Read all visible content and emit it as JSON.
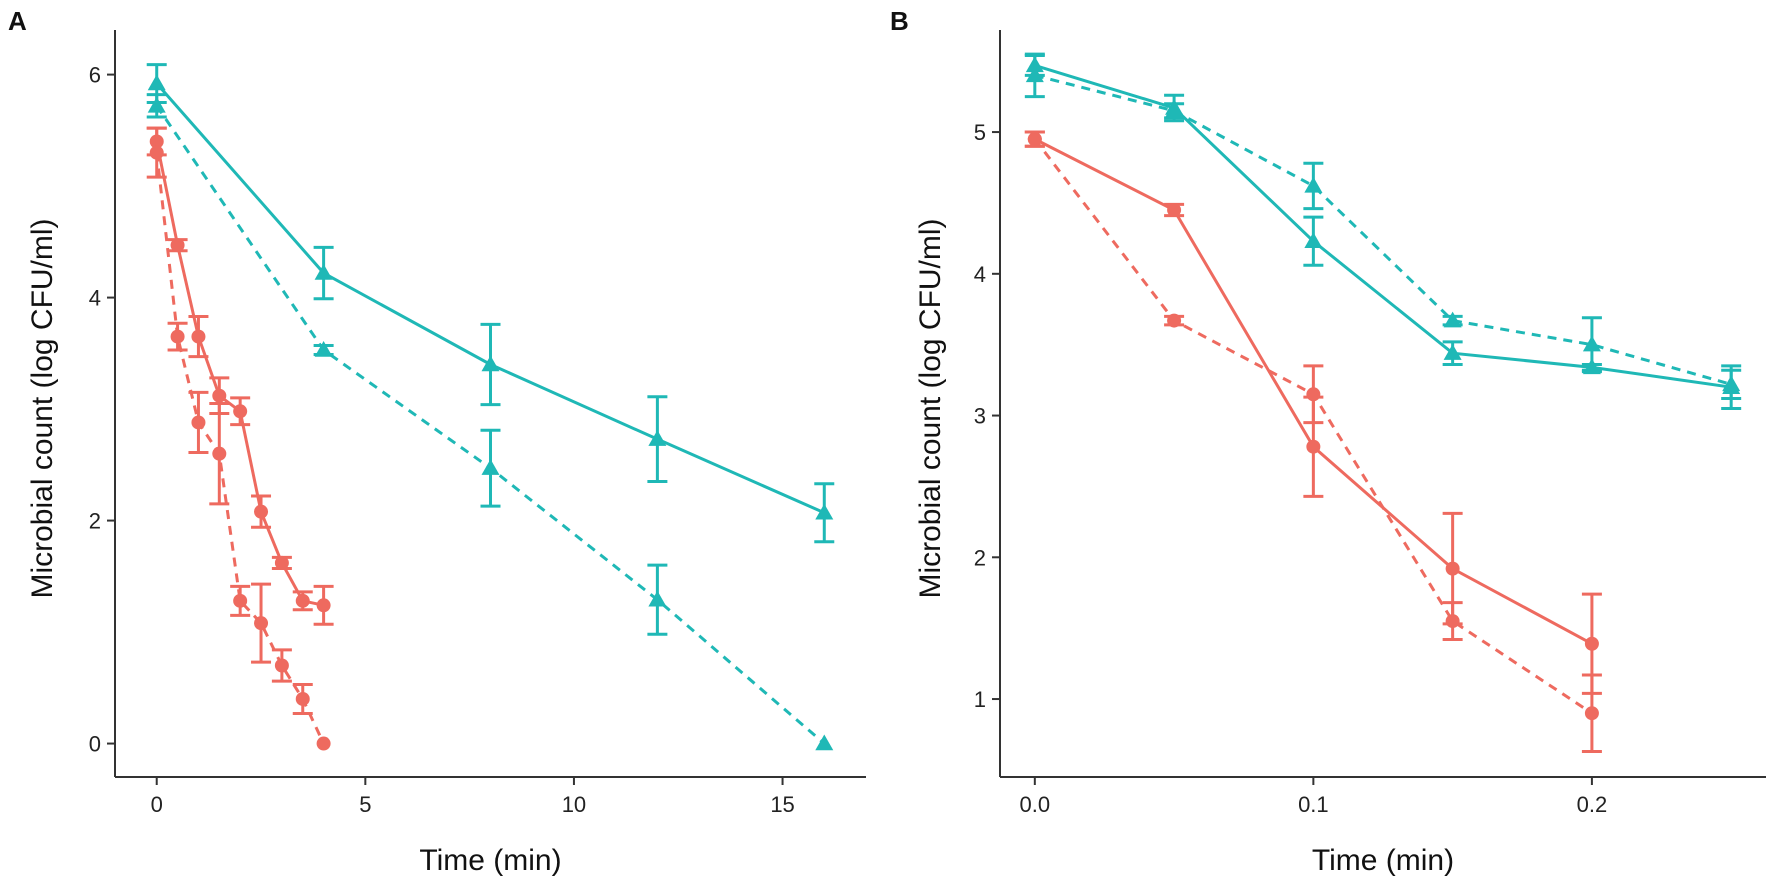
{
  "panels": {
    "a": "A",
    "b": "B"
  },
  "colors": {
    "red": "#EE6A5F",
    "teal": "#1FB8B6",
    "axis": "#333333"
  },
  "chart_data": [
    {
      "type": "line",
      "panel": "A",
      "xlabel": "Time (min)",
      "ylabel": "Microbial count (log CFU/ml)",
      "xlim": [
        -1,
        17
      ],
      "ylim": [
        -0.3,
        6.4
      ],
      "xticks": [
        0,
        5,
        10,
        15
      ],
      "xtick_labels": [
        "0",
        "5",
        "10",
        "15"
      ],
      "yticks": [
        0,
        2,
        4,
        6
      ],
      "ytick_labels": [
        "0",
        "2",
        "4",
        "6"
      ],
      "series": [
        {
          "name": "red-solid",
          "color": "red",
          "dash": false,
          "marker": "circle",
          "x": [
            0,
            0.5,
            1,
            1.5,
            2,
            2.5,
            3,
            3.5,
            4
          ],
          "y": [
            5.4,
            4.47,
            3.65,
            3.12,
            2.98,
            2.08,
            1.62,
            1.28,
            1.24
          ],
          "err": [
            0.12,
            0.05,
            0.18,
            0.16,
            0.12,
            0.14,
            0.05,
            0.08,
            0.17
          ]
        },
        {
          "name": "red-dashed",
          "color": "red",
          "dash": true,
          "marker": "circle",
          "x": [
            0,
            0.5,
            1,
            1.5,
            2,
            2.5,
            3,
            3.5,
            4
          ],
          "y": [
            5.3,
            3.65,
            2.88,
            2.6,
            1.28,
            1.08,
            0.7,
            0.4,
            0.0
          ],
          "err": [
            0.22,
            0.12,
            0.27,
            0.45,
            0.13,
            0.35,
            0.14,
            0.13,
            0.0
          ]
        },
        {
          "name": "teal-solid",
          "color": "teal",
          "dash": false,
          "marker": "triangle",
          "x": [
            0,
            4,
            8,
            12,
            16
          ],
          "y": [
            5.92,
            4.22,
            3.4,
            2.73,
            2.07
          ],
          "err": [
            0.17,
            0.23,
            0.36,
            0.38,
            0.26
          ]
        },
        {
          "name": "teal-dashed",
          "color": "teal",
          "dash": true,
          "marker": "triangle",
          "x": [
            0,
            4,
            8,
            12,
            16
          ],
          "y": [
            5.72,
            3.53,
            2.47,
            1.29,
            0.0
          ],
          "err": [
            0.1,
            0.04,
            0.34,
            0.31,
            0.0
          ]
        }
      ]
    },
    {
      "type": "line",
      "panel": "B",
      "xlabel": "Time (min)",
      "ylabel": "Microbial count (log CFU/ml)",
      "xlim": [
        -0.0125,
        0.2625
      ],
      "ylim": [
        0.45,
        5.72
      ],
      "xticks": [
        0,
        0.1,
        0.2
      ],
      "xtick_labels": [
        "0.0",
        "0.1",
        "0.2"
      ],
      "yticks": [
        1,
        2,
        3,
        4,
        5
      ],
      "ytick_labels": [
        "1",
        "2",
        "3",
        "4",
        "5"
      ],
      "series": [
        {
          "name": "red-solid",
          "color": "red",
          "dash": false,
          "marker": "circle",
          "x": [
            0,
            0.05,
            0.1,
            0.15,
            0.2
          ],
          "y": [
            4.95,
            4.45,
            2.78,
            1.92,
            1.39
          ],
          "err": [
            0.05,
            0.04,
            0.35,
            0.39,
            0.35
          ]
        },
        {
          "name": "red-dashed",
          "color": "red",
          "dash": true,
          "marker": "circle",
          "x": [
            0,
            0.05,
            0.1,
            0.15,
            0.2
          ],
          "y": [
            4.95,
            3.67,
            3.15,
            1.55,
            0.9
          ],
          "err": [
            0.05,
            0.03,
            0.2,
            0.13,
            0.27
          ]
        },
        {
          "name": "teal-solid",
          "color": "teal",
          "dash": false,
          "marker": "triangle",
          "x": [
            0,
            0.05,
            0.1,
            0.15,
            0.2,
            0.25
          ],
          "y": [
            5.47,
            5.17,
            4.23,
            3.44,
            3.34,
            3.2
          ],
          "err": [
            0.07,
            0.09,
            0.17,
            0.08,
            0.02,
            0.15
          ]
        },
        {
          "name": "teal-dashed",
          "color": "teal",
          "dash": true,
          "marker": "triangle",
          "x": [
            0,
            0.05,
            0.1,
            0.15,
            0.2,
            0.25
          ],
          "y": [
            5.4,
            5.15,
            4.62,
            3.67,
            3.5,
            3.22
          ],
          "err": [
            0.15,
            0.05,
            0.16,
            0.03,
            0.19,
            0.1
          ]
        }
      ]
    }
  ]
}
